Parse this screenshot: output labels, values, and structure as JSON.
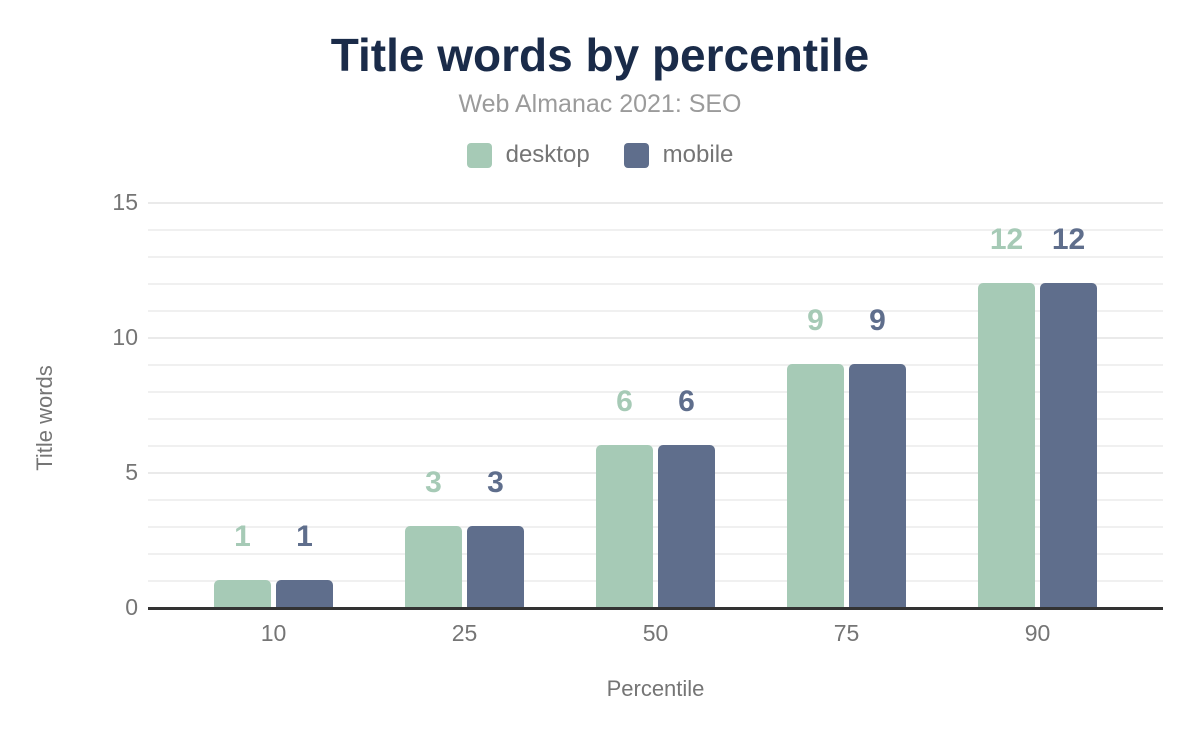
{
  "chart_data": {
    "type": "bar",
    "title": "Title words by percentile",
    "subtitle": "Web Almanac 2021: SEO",
    "categories": [
      "10",
      "25",
      "50",
      "75",
      "90"
    ],
    "series": [
      {
        "name": "desktop",
        "color": "#a6cab6",
        "values": [
          1,
          3,
          6,
          9,
          12
        ]
      },
      {
        "name": "mobile",
        "color": "#5f6e8c",
        "values": [
          1,
          3,
          6,
          9,
          12
        ]
      }
    ],
    "xlabel": "Percentile",
    "ylabel": "Title words",
    "ylim": [
      0,
      15
    ],
    "yticks": [
      0,
      5,
      10,
      15
    ],
    "grid": "horizontal lines every 1 unit, light gray",
    "legend_position": "top center",
    "value_labels": true,
    "bar_corner_radius": "rounded top corners"
  },
  "colors": {
    "background": "#ffffff",
    "title_text": "#1a2b49",
    "subtitle_text": "#9b9b9b",
    "axis_text": "#757575",
    "gridline": "#f0f0f0",
    "axis_line": "#333333"
  }
}
